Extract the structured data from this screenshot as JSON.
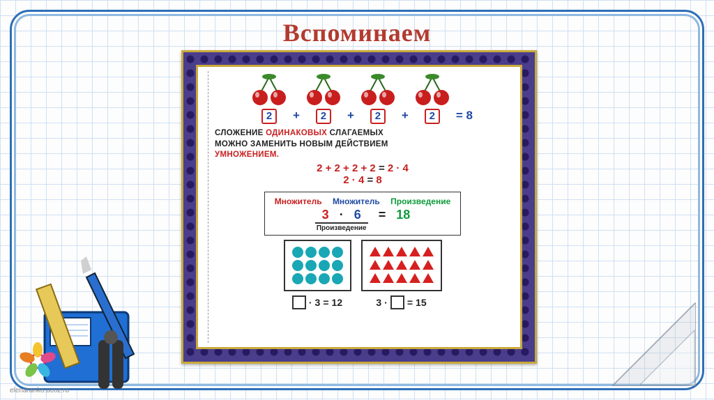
{
  "title": "Вспоминаем",
  "equation": {
    "terms": [
      "2",
      "2",
      "2",
      "2"
    ],
    "result": "8",
    "op": "+",
    "eq": "="
  },
  "rule": {
    "line1a": "СЛОЖЕНИЕ ",
    "line1b": "ОДИНАКОВЫХ",
    "line1c": " СЛАГАЕМЫХ",
    "line2": "МОЖНО ЗАМЕНИТЬ НОВЫМ ДЕЙСТВИЕМ",
    "line3": "УМНОЖЕНИЕМ."
  },
  "math1": {
    "lhs": "2 + 2 + 2 + 2",
    "rhs": "2 · 4",
    "eq": "="
  },
  "math2": {
    "lhs": "2 · 4",
    "rhs": "8",
    "eq": "="
  },
  "mult": {
    "label1": "Множитель",
    "label2": "Множитель",
    "label3": "Произведение",
    "a": "3",
    "dot": "·",
    "b": "6",
    "eq": "=",
    "res": "18",
    "bottom": "Произведение"
  },
  "shapes": {
    "dots": {
      "rows": 3,
      "cols": 4,
      "color": "#19a7b5",
      "eq_before": "",
      "eq_num": "3",
      "eq_eq": "=",
      "eq_res": "12",
      "eq_dot": "·"
    },
    "tris": {
      "rows": 3,
      "cols": 5,
      "color": "#d62020",
      "eq_before": "3",
      "eq_eq": "=",
      "eq_res": "15",
      "eq_dot": "·"
    }
  },
  "watermark": "elenaranko.ucoz.ru",
  "colors": {
    "title": "#b33a2f",
    "frame": "#2e6fb7",
    "card_bg": "#4a3d8c",
    "gold": "#c9a93b",
    "red": "#c82020",
    "blue": "#1f4aa3",
    "green": "#0f9a3c",
    "teal": "#19a7b5"
  }
}
